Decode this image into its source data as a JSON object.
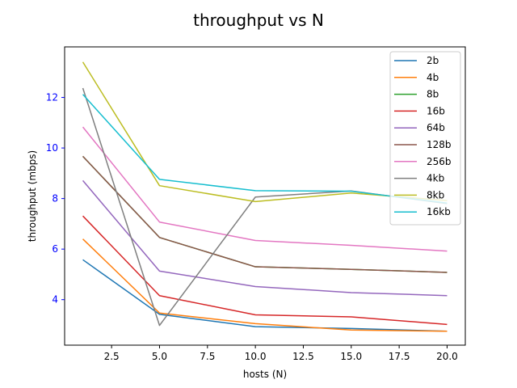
{
  "chart_data": {
    "type": "line",
    "title": "throughput vs N",
    "xlabel": "hosts (N)",
    "ylabel": "throughput (mbps)",
    "xlim": [
      0.05,
      20.95
    ],
    "ylim": [
      2.2,
      14.0
    ],
    "xticks": [
      2.5,
      5.0,
      7.5,
      10.0,
      12.5,
      15.0,
      17.5,
      20.0
    ],
    "xtick_labels": [
      "2.5",
      "5.0",
      "7.5",
      "10.0",
      "12.5",
      "15.0",
      "17.5",
      "20.0"
    ],
    "yticks": [
      4,
      6,
      8,
      10,
      12
    ],
    "ytick_labels": [
      "4",
      "6",
      "8",
      "10",
      "12"
    ],
    "ytick_color": "#0000ff",
    "grid": false,
    "legend_position": "top-right",
    "x": [
      1,
      5,
      10,
      15,
      20
    ],
    "series": [
      {
        "name": "2b",
        "color": "#1f77b4",
        "values": [
          5.58,
          3.42,
          2.93,
          2.86,
          2.75
        ]
      },
      {
        "name": "4b",
        "color": "#ff7f0e",
        "values": [
          6.4,
          3.47,
          3.05,
          2.8,
          2.75
        ]
      },
      {
        "name": "8b",
        "color": "#2ca02c",
        "values": [
          9.67,
          6.46,
          5.3,
          5.2,
          5.08
        ]
      },
      {
        "name": "16b",
        "color": "#d62728",
        "values": [
          7.31,
          4.16,
          3.4,
          3.32,
          3.02
        ]
      },
      {
        "name": "64b",
        "color": "#9467bd",
        "values": [
          8.71,
          5.13,
          4.52,
          4.28,
          4.16
        ]
      },
      {
        "name": "128b",
        "color": "#8c564b",
        "values": [
          9.67,
          6.46,
          5.3,
          5.2,
          5.08
        ]
      },
      {
        "name": "256b",
        "color": "#e377c2",
        "values": [
          10.83,
          7.07,
          6.34,
          6.15,
          5.92
        ]
      },
      {
        "name": "4kb",
        "color": "#7f7f7f",
        "values": [
          12.37,
          2.98,
          8.06,
          8.3,
          7.8
        ]
      },
      {
        "name": "8kb",
        "color": "#bcbd22",
        "values": [
          13.4,
          8.51,
          7.88,
          8.22,
          7.92
        ]
      },
      {
        "name": "16kb",
        "color": "#17becf",
        "values": [
          12.12,
          8.76,
          8.31,
          8.29,
          7.82
        ]
      }
    ]
  }
}
